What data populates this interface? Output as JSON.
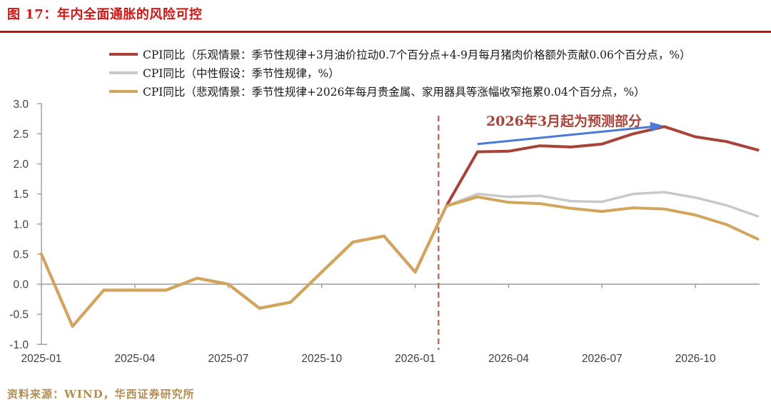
{
  "header": {
    "title": "图 17：年内全面通胀的风险可控"
  },
  "footer": {
    "source": "资料来源：WIND，华西证券研究所"
  },
  "colors": {
    "title_red": "#D01616",
    "rule_red": "#C50D0D",
    "axis_line": "#9C9C9C",
    "axis_text": "#3F3F3F",
    "source_gold": "#B18E55",
    "divider_red": "#C2675D",
    "arrow_blue": "#4A79D6"
  },
  "chart_data": {
    "type": "line",
    "title": "图 17：年内全面通胀的风险可控",
    "xlabel": "",
    "ylabel": "",
    "ylim": [
      -1.0,
      3.0
    ],
    "grid": false,
    "legend_position": "top-left",
    "x": [
      "2025-01",
      "2025-02",
      "2025-03",
      "2025-04",
      "2025-05",
      "2025-06",
      "2025-07",
      "2025-08",
      "2025-09",
      "2025-10",
      "2025-11",
      "2025-12",
      "2026-01",
      "2026-02",
      "2026-03",
      "2026-04",
      "2026-05",
      "2026-06",
      "2026-07",
      "2026-08",
      "2026-09",
      "2026-10",
      "2026-11",
      "2026-12"
    ],
    "x_ticks": [
      {
        "index": 0,
        "label": "2025-01"
      },
      {
        "index": 3,
        "label": "2025-04"
      },
      {
        "index": 6,
        "label": "2025-07"
      },
      {
        "index": 9,
        "label": "2025-10"
      },
      {
        "index": 12,
        "label": "2026-01"
      },
      {
        "index": 15,
        "label": "2026-04"
      },
      {
        "index": 18,
        "label": "2026-07"
      },
      {
        "index": 21,
        "label": "2026-10"
      }
    ],
    "y_ticks": [
      "3.0",
      "2.5",
      "2.0",
      "1.5",
      "1.0",
      "0.5",
      "0.0",
      "-0.5",
      "-1.0"
    ],
    "series": [
      {
        "name": "CPI同比（乐观情景：季节性规律+3月油价拉动0.7个百分点+4-9月每月猪肉价格额外贡献0.06个百分点，%）",
        "color": "#A8433A",
        "width": 4,
        "values": [
          0.5,
          -0.7,
          -0.1,
          -0.1,
          -0.1,
          0.1,
          0.0,
          -0.4,
          -0.3,
          0.2,
          0.7,
          0.8,
          0.2,
          1.3,
          2.2,
          2.21,
          2.3,
          2.28,
          2.33,
          2.5,
          2.62,
          2.45,
          2.37,
          2.23
        ]
      },
      {
        "name": "CPI同比（中性假设：季节性规律，%）",
        "color": "#C9C9C9",
        "width": 3.5,
        "values": [
          0.5,
          -0.7,
          -0.1,
          -0.1,
          -0.1,
          0.1,
          0.0,
          -0.4,
          -0.3,
          0.2,
          0.7,
          0.8,
          0.2,
          1.3,
          1.5,
          1.45,
          1.47,
          1.38,
          1.37,
          1.5,
          1.53,
          1.44,
          1.31,
          1.13
        ]
      },
      {
        "name": "CPI同比（悲观情景：季节性规律+2026年每月贵金属、家用器具等涨幅收窄拖累0.04个百分点，%）",
        "color": "#D2A55C",
        "width": 4,
        "values": [
          0.5,
          -0.7,
          -0.1,
          -0.1,
          -0.1,
          0.1,
          0.0,
          -0.4,
          -0.3,
          0.2,
          0.7,
          0.8,
          0.2,
          1.3,
          1.45,
          1.36,
          1.34,
          1.26,
          1.21,
          1.27,
          1.25,
          1.15,
          0.99,
          0.75
        ]
      }
    ],
    "forecast_divider": {
      "index": 12.75,
      "style": "dashed",
      "color": "#C2675D",
      "after_month": "2026-02"
    },
    "annotation": {
      "text": "2026年3月起为预测部分",
      "color": "#A8433A",
      "forecast_start": "2026-03",
      "arrow": {
        "color": "#4A79D6",
        "from_index": 14.0,
        "from_value": 2.33,
        "to_index": 19.85,
        "to_value": 2.63
      }
    }
  }
}
